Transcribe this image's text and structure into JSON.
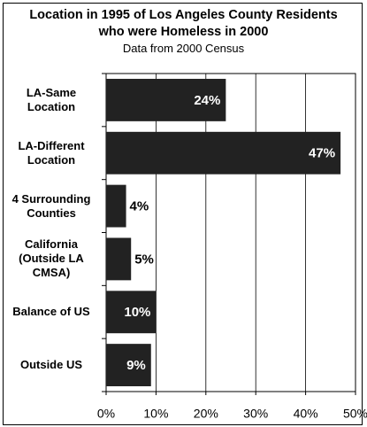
{
  "chart_data": {
    "type": "bar",
    "orientation": "horizontal",
    "title": "Location in 1995 of Los Angeles County Residents who were Homeless in 2000",
    "subtitle": "Data from 2000 Census",
    "categories": [
      "LA-Same Location",
      "LA-Different Location",
      "4 Surrounding Counties",
      "California (Outside LA CMSA)",
      "Balance of US",
      "Outside US"
    ],
    "values": [
      24,
      47,
      4,
      5,
      10,
      9
    ],
    "value_labels": [
      "24%",
      "47%",
      "4%",
      "5%",
      "10%",
      "9%"
    ],
    "color": "#222222",
    "xlim": [
      0,
      50
    ],
    "xticks": [
      {
        "value": 0,
        "label": "0%"
      },
      {
        "value": 10,
        "label": "10%"
      },
      {
        "value": 20,
        "label": "20%"
      },
      {
        "value": 30,
        "label": "30%"
      },
      {
        "value": 40,
        "label": "40%"
      },
      {
        "value": 50,
        "label": "50%"
      }
    ],
    "grid": true
  }
}
